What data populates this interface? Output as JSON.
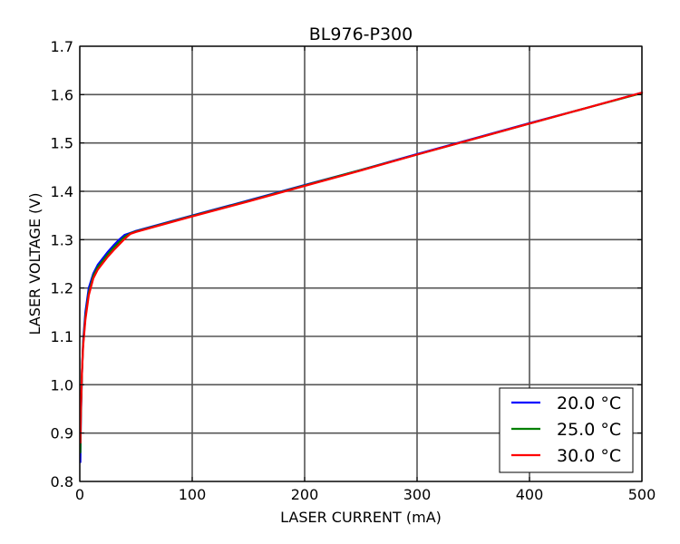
{
  "chart_data": {
    "type": "line",
    "title": "BL976-P300",
    "xlabel": "LASER CURRENT (mA)",
    "ylabel": "LASER VOLTAGE (V)",
    "xlim": [
      0,
      500
    ],
    "ylim": [
      0.8,
      1.7
    ],
    "xticks": [
      0,
      100,
      200,
      300,
      400,
      500
    ],
    "yticks": [
      0.8,
      0.9,
      1.0,
      1.1,
      1.2,
      1.3,
      1.4,
      1.5,
      1.6,
      1.7
    ],
    "xtick_labels": [
      "0",
      "100",
      "200",
      "300",
      "400",
      "500"
    ],
    "ytick_labels": [
      "0.8",
      "0.9",
      "1.0",
      "1.1",
      "1.2",
      "1.3",
      "1.4",
      "1.5",
      "1.6",
      "1.7"
    ],
    "grid": true,
    "legend_position": "lower-right",
    "series": [
      {
        "name": "20.0 °C",
        "color": "#0000ff",
        "x": [
          0.5,
          1,
          2,
          3,
          5,
          8,
          12,
          16,
          20,
          25,
          30,
          35,
          40,
          45,
          50,
          100,
          150,
          200,
          250,
          300,
          350,
          400,
          450,
          500
        ],
        "y": [
          0.84,
          0.93,
          1.03,
          1.09,
          1.15,
          1.2,
          1.23,
          1.248,
          1.26,
          1.275,
          1.288,
          1.3,
          1.31,
          1.314,
          1.318,
          1.35,
          1.381,
          1.413,
          1.444,
          1.477,
          1.509,
          1.541,
          1.572,
          1.604
        ]
      },
      {
        "name": "25.0 °C",
        "color": "#008000",
        "x": [
          0.5,
          1,
          2,
          3,
          5,
          8,
          12,
          16,
          20,
          25,
          30,
          35,
          40,
          45,
          50,
          100,
          150,
          200,
          250,
          300,
          350,
          400,
          450,
          500
        ],
        "y": [
          0.86,
          0.94,
          1.03,
          1.085,
          1.14,
          1.19,
          1.225,
          1.243,
          1.255,
          1.27,
          1.283,
          1.295,
          1.306,
          1.313,
          1.317,
          1.349,
          1.38,
          1.412,
          1.444,
          1.476,
          1.508,
          1.54,
          1.572,
          1.603
        ]
      },
      {
        "name": "30.0 °C",
        "color": "#ff0000",
        "x": [
          0.5,
          1,
          2,
          3,
          5,
          8,
          12,
          16,
          20,
          25,
          30,
          35,
          40,
          45,
          50,
          100,
          150,
          200,
          250,
          300,
          350,
          400,
          450,
          500
        ],
        "y": [
          0.88,
          0.95,
          1.03,
          1.08,
          1.135,
          1.185,
          1.22,
          1.238,
          1.25,
          1.265,
          1.278,
          1.29,
          1.302,
          1.312,
          1.316,
          1.348,
          1.379,
          1.411,
          1.443,
          1.476,
          1.508,
          1.54,
          1.572,
          1.604
        ]
      }
    ]
  }
}
